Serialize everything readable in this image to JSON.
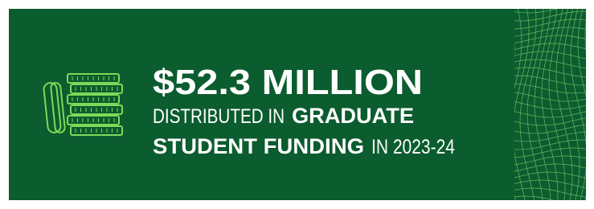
{
  "banner": {
    "headline": "$52.3 MILLION",
    "line2": {
      "plain": "DISTRIBUTED IN",
      "bold": "GRADUATE"
    },
    "line3": {
      "bold": "STUDENT FUNDING",
      "plain": "IN 2023-24"
    }
  }
}
